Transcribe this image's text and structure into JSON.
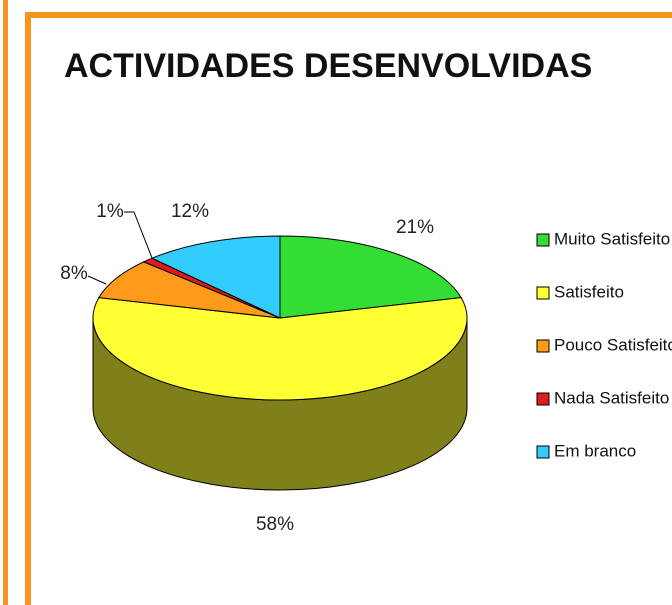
{
  "chart_data": {
    "type": "pie3d",
    "title": "ACTIVIDADES DESENVOLVIDAS",
    "categories": [
      "Muito Satisfeito",
      "Satisfeito",
      "Pouco Satisfeito",
      "Nada Satisfeito",
      "Em branco"
    ],
    "values": [
      21,
      58,
      8,
      1,
      12
    ],
    "value_labels": [
      "21%",
      "58%",
      "8%",
      "1%",
      "12%"
    ],
    "colors": [
      "#33dd33",
      "#ffff33",
      "#ff9a1a",
      "#e31a1c",
      "#33ccff"
    ],
    "legend": "right"
  }
}
